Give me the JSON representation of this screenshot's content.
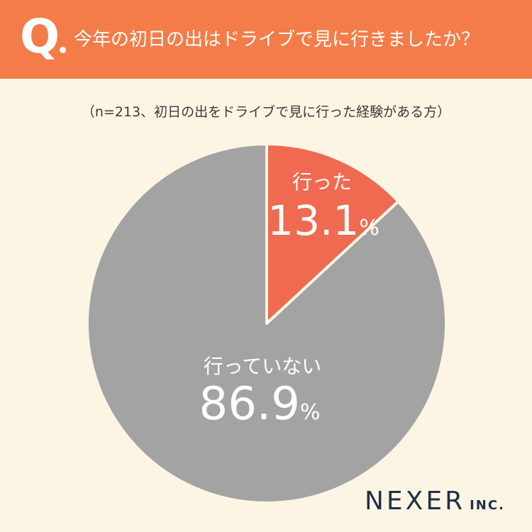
{
  "header": {
    "q_mark": "Q",
    "question": "今年の初日の出はドライブで見に行きましたか？"
  },
  "sample_note": "（n=213、初日の出をドライブで見に行った経験がある方）",
  "colors": {
    "header_bg": "#f47c48",
    "page_bg": "#fdf5e4",
    "went": "#ef6a50",
    "not_went": "#a3a3a3"
  },
  "chart_data": {
    "type": "pie",
    "slices": [
      {
        "label": "行った",
        "value": 13.1,
        "display": "13.1",
        "unit": "%",
        "color": "#ef6a50"
      },
      {
        "label": "行っていない",
        "value": 86.9,
        "display": "86.9",
        "unit": "%",
        "color": "#a3a3a3"
      }
    ]
  },
  "logo": {
    "main": "NEXER",
    "sub": "INC."
  }
}
